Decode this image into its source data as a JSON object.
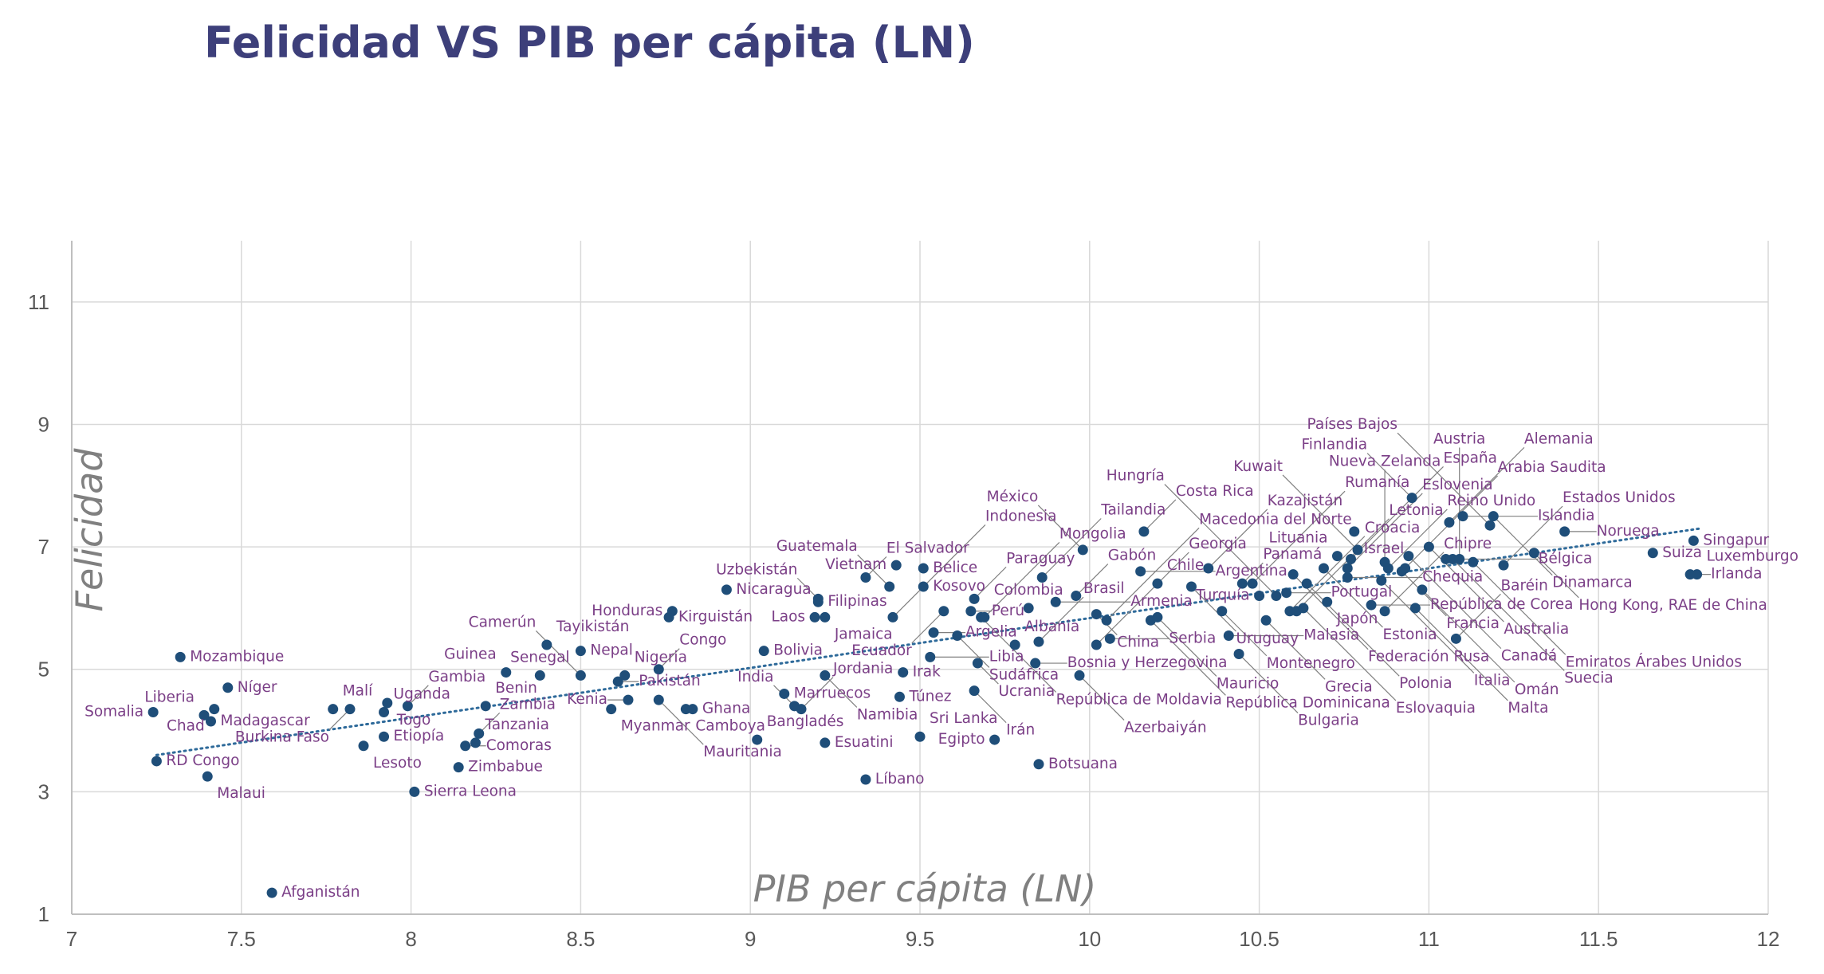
{
  "chart_data": {
    "type": "scatter",
    "title": "Felicidad VS PIB per cápita (LN)",
    "xlabel": "PIB per cápita (LN)",
    "ylabel": "Felicidad",
    "xlim": [
      7,
      12
    ],
    "ylim": [
      1,
      12
    ],
    "xticks": [
      "7",
      "7.5",
      "8",
      "8.5",
      "9",
      "9.5",
      "10",
      "10.5",
      "11",
      "11.5",
      "12"
    ],
    "yticks": [
      "1",
      "3",
      "5",
      "7",
      "9",
      "11"
    ],
    "grid": true,
    "trendline": {
      "type": "linear",
      "style": "dotted",
      "x": [
        7.25,
        11.8
      ],
      "y": [
        3.6,
        7.3
      ]
    },
    "points": [
      {
        "x": 7.25,
        "y": 3.5,
        "label": "RD Congo"
      },
      {
        "x": 7.24,
        "y": 4.3,
        "label": "Somalia"
      },
      {
        "x": 7.32,
        "y": 5.2,
        "label": "Mozambique"
      },
      {
        "x": 7.39,
        "y": 4.25,
        "label": "Liberia"
      },
      {
        "x": 7.41,
        "y": 4.15,
        "label": "Madagascar"
      },
      {
        "x": 7.42,
        "y": 4.35,
        "label": "Chad"
      },
      {
        "x": 7.46,
        "y": 4.7,
        "label": "Níger"
      },
      {
        "x": 7.4,
        "y": 3.25,
        "label": "Malaui"
      },
      {
        "x": 7.59,
        "y": 1.35,
        "label": "Afganistán"
      },
      {
        "x": 7.77,
        "y": 4.35,
        "label": "Malí"
      },
      {
        "x": 7.82,
        "y": 4.35,
        "label": "Burkina Faso"
      },
      {
        "x": 7.86,
        "y": 3.75,
        "label": "Lesoto"
      },
      {
        "x": 7.92,
        "y": 4.3,
        "label": "Uganda"
      },
      {
        "x": 7.93,
        "y": 4.45,
        "label": "Togo"
      },
      {
        "x": 7.92,
        "y": 3.9,
        "label": "Etiopía"
      },
      {
        "x": 7.99,
        "y": 4.4,
        "label": "Gambia"
      },
      {
        "x": 8.01,
        "y": 3.0,
        "label": "Sierra Leona"
      },
      {
        "x": 8.14,
        "y": 3.4,
        "label": "Zimbabue"
      },
      {
        "x": 8.16,
        "y": 3.75,
        "label": "Comoras"
      },
      {
        "x": 8.19,
        "y": 3.8,
        "label": "Tanzania"
      },
      {
        "x": 8.2,
        "y": 3.95,
        "label": "Zambia"
      },
      {
        "x": 8.22,
        "y": 4.4,
        "label": "Benin"
      },
      {
        "x": 8.28,
        "y": 4.95,
        "label": "Guinea"
      },
      {
        "x": 8.38,
        "y": 4.9,
        "label": "Senegal"
      },
      {
        "x": 8.4,
        "y": 5.4,
        "label": "Tayikistán"
      },
      {
        "x": 8.5,
        "y": 5.3,
        "label": "Nepal"
      },
      {
        "x": 8.5,
        "y": 4.9,
        "label": "Camerún"
      },
      {
        "x": 8.59,
        "y": 4.35,
        "label": "Myanmar"
      },
      {
        "x": 8.61,
        "y": 4.8,
        "label": "Pakistán"
      },
      {
        "x": 8.63,
        "y": 4.9,
        "label": "Nigeria"
      },
      {
        "x": 8.64,
        "y": 4.5,
        "label": "Kenia"
      },
      {
        "x": 8.73,
        "y": 5.0,
        "label": "Congo"
      },
      {
        "x": 8.73,
        "y": 4.5,
        "label": "Mauritania"
      },
      {
        "x": 8.76,
        "y": 5.85,
        "label": "Kirguistán"
      },
      {
        "x": 8.77,
        "y": 5.95,
        "label": "Honduras"
      },
      {
        "x": 8.81,
        "y": 4.35,
        "label": "Camboya"
      },
      {
        "x": 8.83,
        "y": 4.35,
        "label": "Ghana"
      },
      {
        "x": 8.93,
        "y": 6.3,
        "label": "Nicaragua"
      },
      {
        "x": 9.02,
        "y": 3.85,
        "label": "Bangladés"
      },
      {
        "x": 9.04,
        "y": 5.3,
        "label": "Bolivia"
      },
      {
        "x": 9.1,
        "y": 4.6,
        "label": "Marruecos"
      },
      {
        "x": 9.13,
        "y": 4.4,
        "label": "India"
      },
      {
        "x": 9.15,
        "y": 4.35,
        "label": "Jordania"
      },
      {
        "x": 9.19,
        "y": 5.85,
        "label": "Laos"
      },
      {
        "x": 9.2,
        "y": 6.1,
        "label": "Filipinas"
      },
      {
        "x": 9.2,
        "y": 6.15,
        "label": "Uzbekistán"
      },
      {
        "x": 9.22,
        "y": 5.85,
        "label": "Jamaica"
      },
      {
        "x": 9.22,
        "y": 4.9,
        "label": "Namibia"
      },
      {
        "x": 9.22,
        "y": 3.8,
        "label": "Esuatini"
      },
      {
        "x": 9.34,
        "y": 6.5,
        "label": "El Salvador"
      },
      {
        "x": 9.34,
        "y": 3.2,
        "label": "Líbano"
      },
      {
        "x": 9.41,
        "y": 6.35,
        "label": "Guatemala"
      },
      {
        "x": 9.42,
        "y": 5.85,
        "label": "Indonesia"
      },
      {
        "x": 9.43,
        "y": 6.7,
        "label": "Vietnam"
      },
      {
        "x": 9.44,
        "y": 4.55,
        "label": "Túnez"
      },
      {
        "x": 9.45,
        "y": 4.95,
        "label": "Irak"
      },
      {
        "x": 9.5,
        "y": 3.9,
        "label": "Sri Lanka"
      },
      {
        "x": 9.51,
        "y": 6.35,
        "label": "Kosovo"
      },
      {
        "x": 9.51,
        "y": 6.65,
        "label": "Belice"
      },
      {
        "x": 9.53,
        "y": 5.2,
        "label": "Libia"
      },
      {
        "x": 9.54,
        "y": 5.6,
        "label": "Argelia"
      },
      {
        "x": 9.57,
        "y": 5.95,
        "label": "Ecuador"
      },
      {
        "x": 9.61,
        "y": 5.55,
        "label": "Sudáfrica"
      },
      {
        "x": 9.65,
        "y": 5.95,
        "label": "Perú"
      },
      {
        "x": 9.66,
        "y": 6.15,
        "label": "Paraguay"
      },
      {
        "x": 9.66,
        "y": 4.65,
        "label": "Irán"
      },
      {
        "x": 9.67,
        "y": 5.1,
        "label": "Ucrania"
      },
      {
        "x": 9.68,
        "y": 5.85,
        "label": "República de Moldavia"
      },
      {
        "x": 9.69,
        "y": 5.85,
        "label": "Mongolia"
      },
      {
        "x": 9.72,
        "y": 3.85,
        "label": "Egipto"
      },
      {
        "x": 9.78,
        "y": 5.4,
        "label": "Albania"
      },
      {
        "x": 9.82,
        "y": 6.0,
        "label": "Colombia"
      },
      {
        "x": 9.84,
        "y": 5.1,
        "label": "Bosnia y Herzegovina"
      },
      {
        "x": 9.85,
        "y": 3.45,
        "label": "Botsuana"
      },
      {
        "x": 9.85,
        "y": 5.45,
        "label": "Brasil"
      },
      {
        "x": 9.86,
        "y": 6.5,
        "label": "Tailandia"
      },
      {
        "x": 9.9,
        "y": 6.1,
        "label": "Armenia"
      },
      {
        "x": 9.96,
        "y": 6.2,
        "label": "Gabón"
      },
      {
        "x": 9.97,
        "y": 4.9,
        "label": "Azerbaiyán"
      },
      {
        "x": 9.98,
        "y": 6.95,
        "label": "México"
      },
      {
        "x": 10.02,
        "y": 5.9,
        "label": "China"
      },
      {
        "x": 10.02,
        "y": 5.4,
        "label": "Georgia"
      },
      {
        "x": 10.05,
        "y": 5.8,
        "label": "Macedonia del Norte"
      },
      {
        "x": 10.06,
        "y": 5.5,
        "label": "Serbia"
      },
      {
        "x": 10.15,
        "y": 6.6,
        "label": "Argentina"
      },
      {
        "x": 10.16,
        "y": 7.25,
        "label": "Costa Rica"
      },
      {
        "x": 10.18,
        "y": 5.8,
        "label": "República Dominicana"
      },
      {
        "x": 10.2,
        "y": 6.4,
        "label": "Chile"
      },
      {
        "x": 10.2,
        "y": 5.85,
        "label": "Mauricio"
      },
      {
        "x": 10.3,
        "y": 6.35,
        "label": "Uruguay"
      },
      {
        "x": 10.35,
        "y": 6.65,
        "label": "Kazajistán"
      },
      {
        "x": 10.39,
        "y": 5.95,
        "label": "Montenegro"
      },
      {
        "x": 10.41,
        "y": 5.55,
        "label": "Malasia"
      },
      {
        "x": 10.44,
        "y": 5.25,
        "label": "Bulgaria"
      },
      {
        "x": 10.45,
        "y": 6.4,
        "label": "Panamá"
      },
      {
        "x": 10.48,
        "y": 6.4,
        "label": "Rumanía"
      },
      {
        "x": 10.5,
        "y": 6.2,
        "label": "Turquía"
      },
      {
        "x": 10.52,
        "y": 5.8,
        "label": "Grecia"
      },
      {
        "x": 10.55,
        "y": 6.2,
        "label": "Hungría"
      },
      {
        "x": 10.58,
        "y": 6.25,
        "label": "Portugal"
      },
      {
        "x": 10.59,
        "y": 5.95,
        "label": "Croacia"
      },
      {
        "x": 10.6,
        "y": 6.55,
        "label": "Federación Rusa"
      },
      {
        "x": 10.61,
        "y": 5.95,
        "label": "Letonia"
      },
      {
        "x": 10.63,
        "y": 6.0,
        "label": "Eslovaquia"
      },
      {
        "x": 10.64,
        "y": 6.4,
        "label": "Polonia"
      },
      {
        "x": 10.69,
        "y": 6.65,
        "label": "Estonia"
      },
      {
        "x": 10.7,
        "y": 6.1,
        "label": "Japón"
      },
      {
        "x": 10.73,
        "y": 6.85,
        "label": "Lituania"
      },
      {
        "x": 10.76,
        "y": 6.5,
        "label": "Chequia"
      },
      {
        "x": 10.76,
        "y": 6.65,
        "label": "Eslovenia"
      },
      {
        "x": 10.77,
        "y": 6.8,
        "label": "España"
      },
      {
        "x": 10.78,
        "y": 7.25,
        "label": "Israel"
      },
      {
        "x": 10.79,
        "y": 6.95,
        "label": "Kuwait"
      },
      {
        "x": 10.83,
        "y": 6.05,
        "label": "República de Corea"
      },
      {
        "x": 10.86,
        "y": 6.45,
        "label": "Italia"
      },
      {
        "x": 10.87,
        "y": 6.75,
        "label": "Nueva Zelanda"
      },
      {
        "x": 10.87,
        "y": 5.95,
        "label": "Chipre"
      },
      {
        "x": 10.88,
        "y": 6.65,
        "label": "Reino Unido"
      },
      {
        "x": 10.92,
        "y": 6.6,
        "label": "Francia"
      },
      {
        "x": 10.93,
        "y": 6.65,
        "label": "Arabia Saudita"
      },
      {
        "x": 10.94,
        "y": 6.85,
        "label": "Canadá"
      },
      {
        "x": 10.95,
        "y": 7.8,
        "label": "Finlandia"
      },
      {
        "x": 10.96,
        "y": 6.0,
        "label": "Malta"
      },
      {
        "x": 10.98,
        "y": 6.3,
        "label": "Omán"
      },
      {
        "x": 11.0,
        "y": 7.0,
        "label": "Australia"
      },
      {
        "x": 11.05,
        "y": 6.8,
        "label": "Bélgica"
      },
      {
        "x": 11.06,
        "y": 7.4,
        "label": "Alemania"
      },
      {
        "x": 11.07,
        "y": 6.8,
        "label": "Suecia"
      },
      {
        "x": 11.08,
        "y": 5.5,
        "label": "Baréin"
      },
      {
        "x": 11.09,
        "y": 6.8,
        "label": "Austria"
      },
      {
        "x": 11.1,
        "y": 7.5,
        "label": "Islandia"
      },
      {
        "x": 11.13,
        "y": 6.75,
        "label": "Emiratos Árabes Unidos"
      },
      {
        "x": 11.18,
        "y": 7.35,
        "label": "Países Bajos"
      },
      {
        "x": 11.19,
        "y": 7.5,
        "label": "Dinamarca"
      },
      {
        "x": 11.22,
        "y": 6.7,
        "label": "Estados Unidos"
      },
      {
        "x": 11.31,
        "y": 6.9,
        "label": "Hong Kong, RAE de China"
      },
      {
        "x": 11.4,
        "y": 7.25,
        "label": "Noruega"
      },
      {
        "x": 11.66,
        "y": 6.9,
        "label": "Suiza"
      },
      {
        "x": 11.77,
        "y": 6.55,
        "label": "Irlanda"
      },
      {
        "x": 11.78,
        "y": 7.1,
        "label": "Singapur"
      },
      {
        "x": 11.79,
        "y": 6.55,
        "label": "Luxemburgo"
      }
    ]
  }
}
